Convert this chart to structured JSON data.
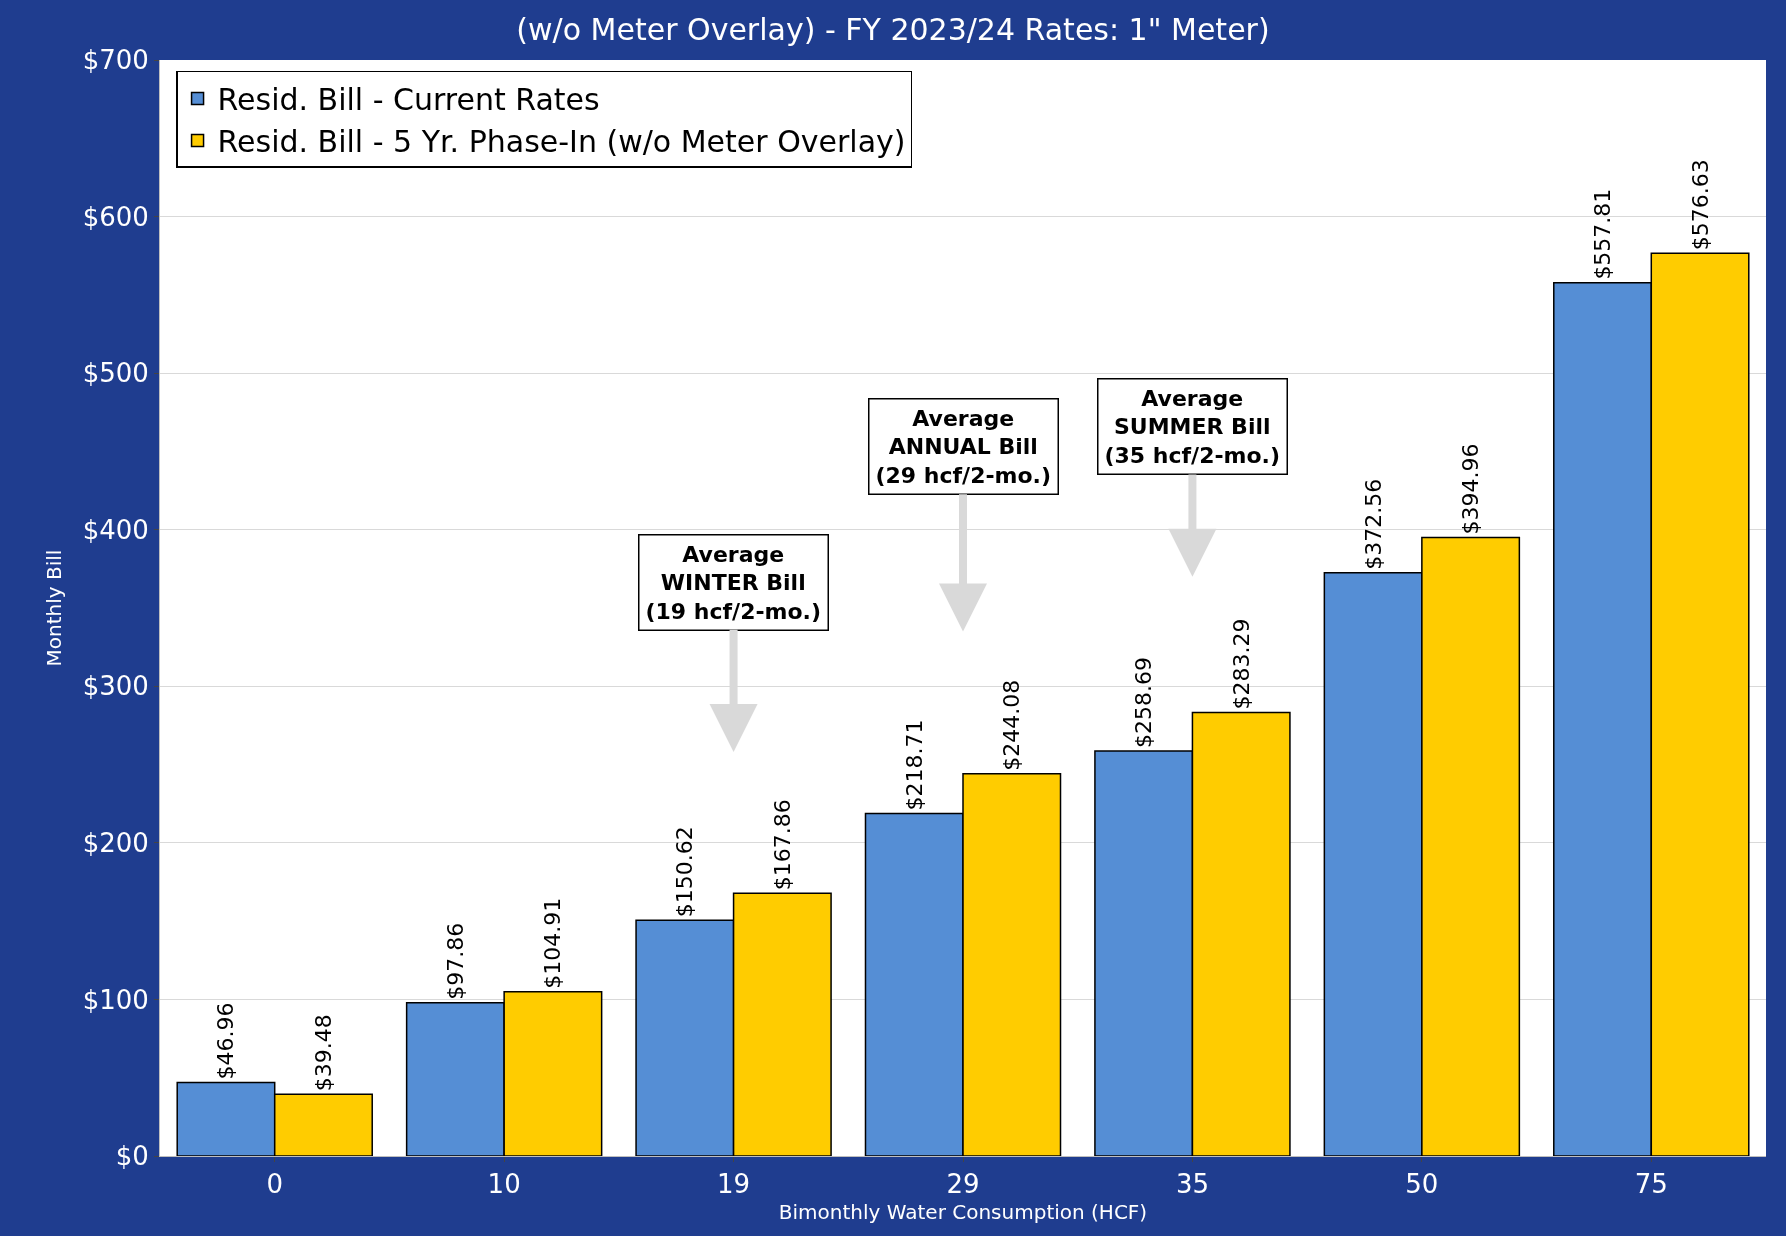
{
  "chart_data": {
    "type": "bar",
    "title": "(w/o Meter Overlay) - FY 2023/24 Rates: 1\" Meter)",
    "xlabel": "Bimonthly Water Consumption (HCF)",
    "ylabel": "Monthly Bill",
    "categories": [
      "0",
      "10",
      "19",
      "29",
      "35",
      "50",
      "75"
    ],
    "series": [
      {
        "name": "Resid. Bill - Current Rates",
        "color": "#558ed5",
        "values": [
          46.96,
          97.86,
          150.62,
          218.71,
          258.69,
          372.56,
          557.81
        ],
        "value_labels": [
          "$46.96",
          "$97.86",
          "$150.62",
          "$218.71",
          "$258.69",
          "$372.56",
          "$557.81"
        ]
      },
      {
        "name": "Resid. Bill - 5 Yr. Phase-In (w/o Meter Overlay)",
        "color": "#ffcc00",
        "values": [
          39.48,
          104.91,
          167.86,
          244.08,
          283.29,
          394.96,
          576.63
        ],
        "value_labels": [
          "$39.48",
          "$104.91",
          "$167.86",
          "$244.08",
          "$283.29",
          "$394.96",
          "$576.63"
        ]
      }
    ],
    "ylim": [
      0,
      700
    ],
    "yticks": [
      {
        "value": 0,
        "label": "$0"
      },
      {
        "value": 100,
        "label": "$100"
      },
      {
        "value": 200,
        "label": "$200"
      },
      {
        "value": 300,
        "label": "$300"
      },
      {
        "value": 400,
        "label": "$400"
      },
      {
        "value": 500,
        "label": "$500"
      },
      {
        "value": 600,
        "label": "$600"
      },
      {
        "value": 700,
        "label": "$700"
      }
    ],
    "annotations": [
      "Average\nWINTER Bill\n(19 hcf/2-mo.)",
      "Average\nANNUAL Bill\n(29 hcf/2-mo.)",
      "Average\nSUMMER Bill\n(35 hcf/2-mo.)"
    ],
    "grid": "y",
    "legend": "top left"
  }
}
